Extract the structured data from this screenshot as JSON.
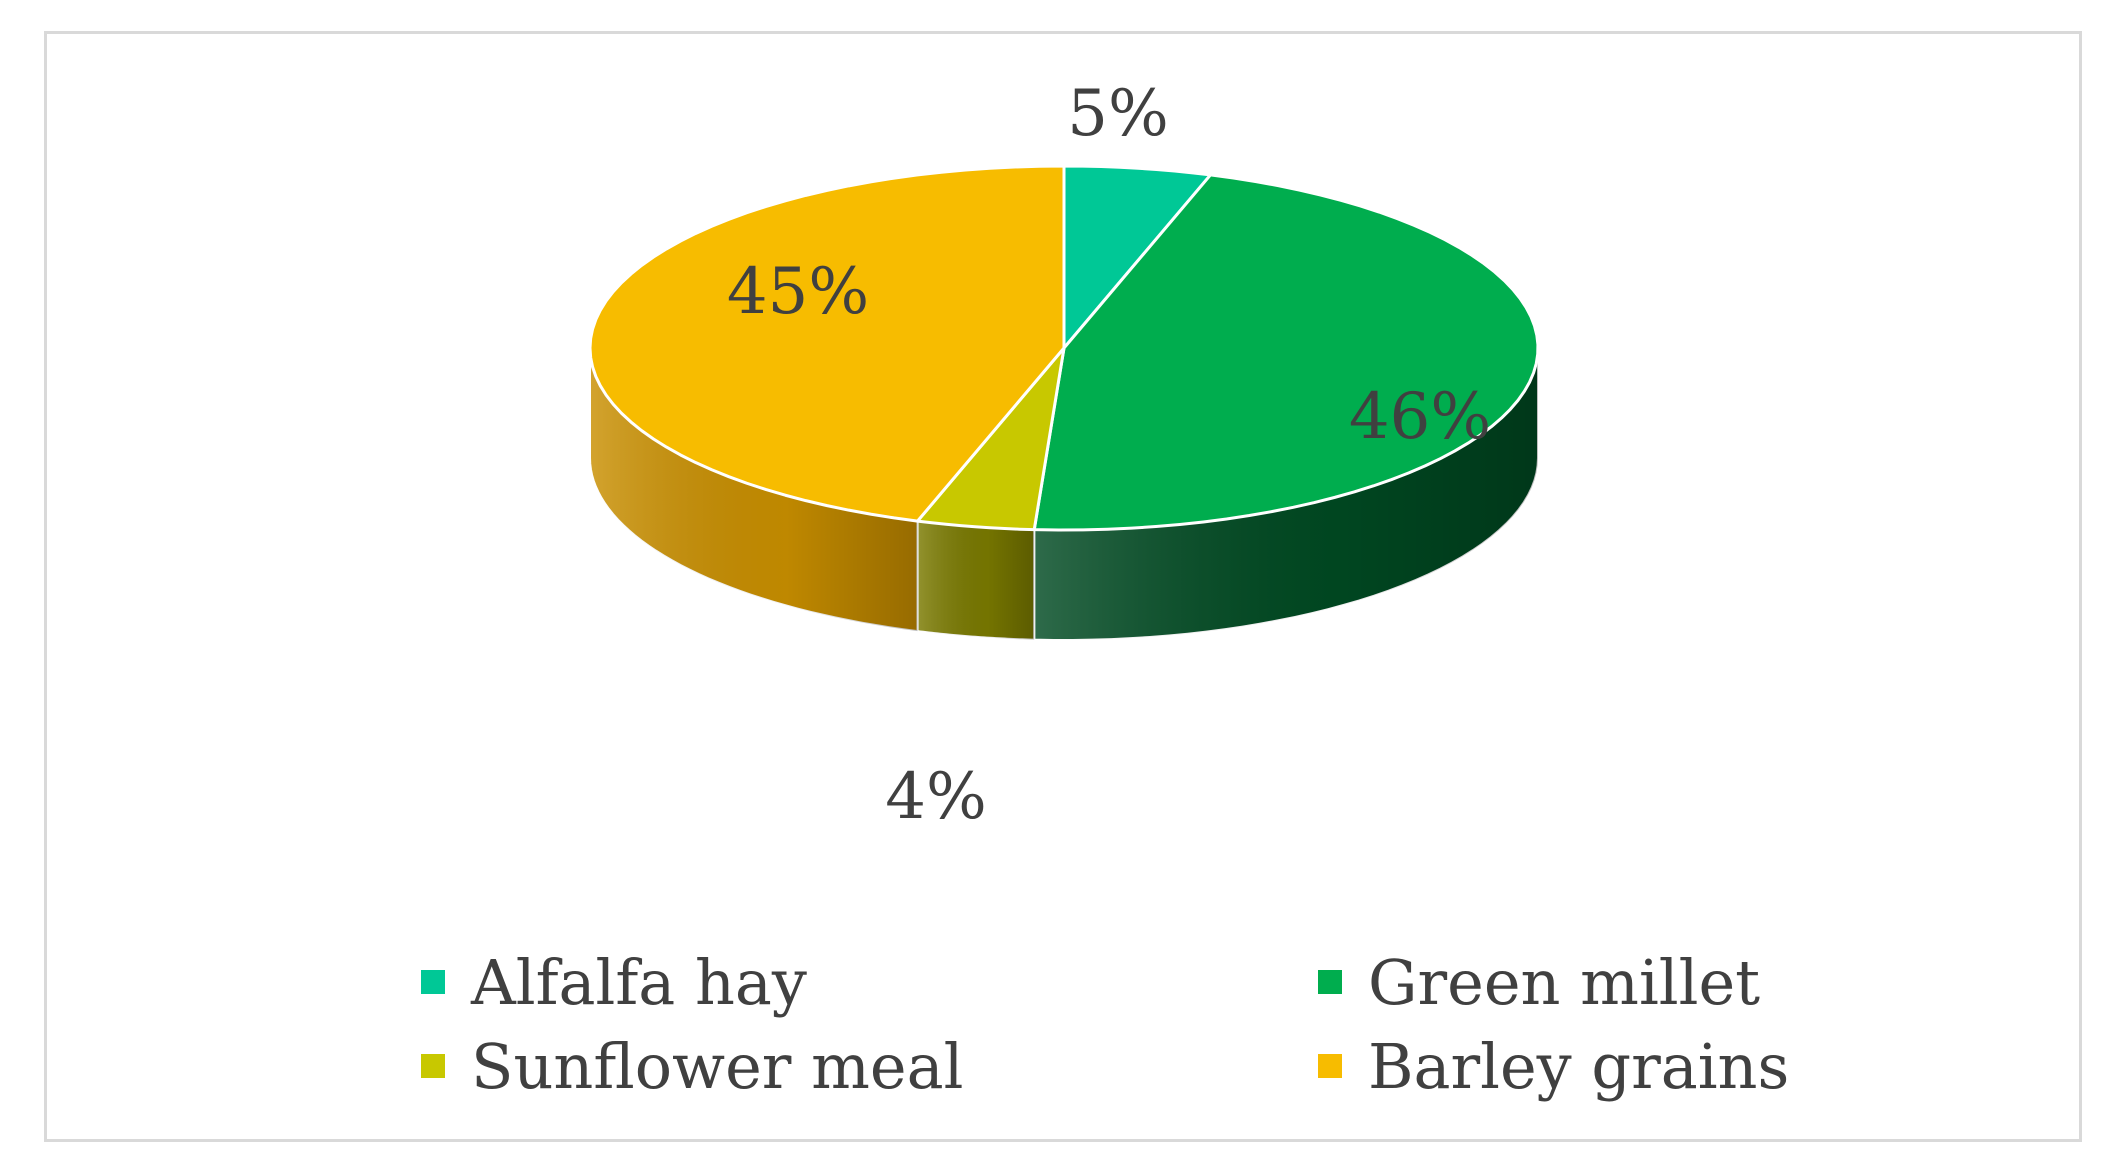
{
  "chart_data": {
    "type": "pie",
    "title": "",
    "categories": [
      "Alfalfa hay",
      "Green millet",
      "Sunflower meal",
      "Barley grains"
    ],
    "values": [
      5,
      46,
      4,
      45
    ],
    "data_labels": [
      "5%",
      "46%",
      "4%",
      "45%"
    ],
    "colors": [
      "#00C896",
      "#00AD4E",
      "#C8C800",
      "#F7BC00"
    ],
    "side_colors": [
      "#00866A",
      "#004A22",
      "#7A7A00",
      "#C98F00"
    ],
    "style": "3d",
    "legend_position": "bottom"
  },
  "legend": {
    "items": [
      {
        "label": "Alfalfa hay",
        "color": "#00C896"
      },
      {
        "label": "Green millet",
        "color": "#00AD4E"
      },
      {
        "label": "Sunflower meal",
        "color": "#C8C800"
      },
      {
        "label": "Barley grains",
        "color": "#F7BC00"
      }
    ]
  }
}
